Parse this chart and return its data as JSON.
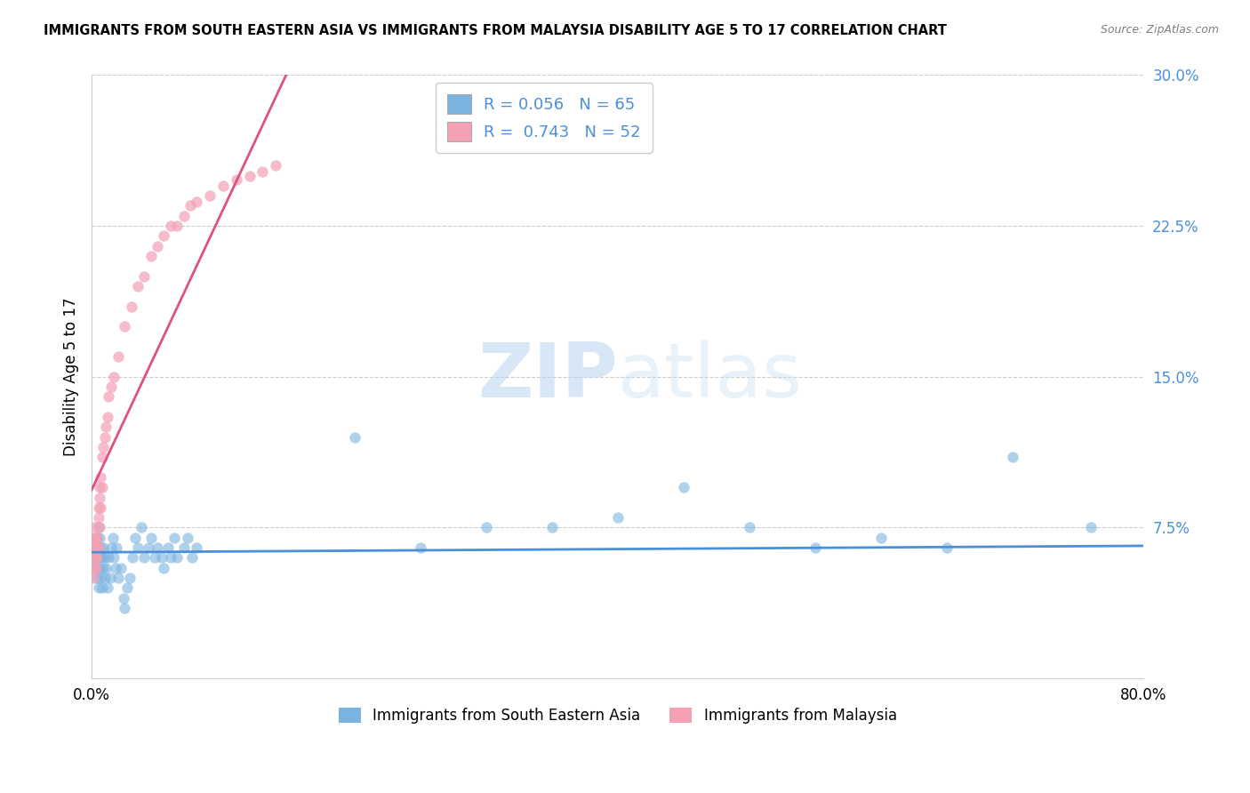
{
  "title": "IMMIGRANTS FROM SOUTH EASTERN ASIA VS IMMIGRANTS FROM MALAYSIA DISABILITY AGE 5 TO 17 CORRELATION CHART",
  "source": "Source: ZipAtlas.com",
  "ylabel": "Disability Age 5 to 17",
  "legend_label1": "Immigrants from South Eastern Asia",
  "legend_label2": "Immigrants from Malaysia",
  "R1": 0.056,
  "N1": 65,
  "R2": 0.743,
  "N2": 52,
  "color1": "#7ab3e0",
  "color2": "#f4a0b5",
  "line_color1": "#4a90d9",
  "line_color2": "#e05080",
  "xlim": [
    0.0,
    0.8
  ],
  "ylim": [
    0.0,
    0.3
  ],
  "yticks": [
    0.0,
    0.075,
    0.15,
    0.225,
    0.3
  ],
  "ytick_labels": [
    "",
    "7.5%",
    "15.0%",
    "22.5%",
    "30.0%"
  ],
  "background_color": "#ffffff",
  "watermark_zip": "ZIP",
  "watermark_atlas": "atlas",
  "blue_scatter_x": [
    0.002,
    0.003,
    0.003,
    0.004,
    0.004,
    0.005,
    0.005,
    0.005,
    0.006,
    0.006,
    0.006,
    0.007,
    0.007,
    0.008,
    0.008,
    0.009,
    0.009,
    0.01,
    0.01,
    0.011,
    0.012,
    0.013,
    0.014,
    0.015,
    0.016,
    0.017,
    0.018,
    0.019,
    0.02,
    0.022,
    0.024,
    0.025,
    0.027,
    0.029,
    0.031,
    0.033,
    0.035,
    0.038,
    0.04,
    0.043,
    0.045,
    0.048,
    0.05,
    0.053,
    0.055,
    0.058,
    0.06,
    0.063,
    0.065,
    0.07,
    0.073,
    0.076,
    0.08,
    0.2,
    0.25,
    0.3,
    0.35,
    0.4,
    0.45,
    0.5,
    0.55,
    0.6,
    0.65,
    0.7,
    0.76
  ],
  "blue_scatter_y": [
    0.06,
    0.055,
    0.065,
    0.05,
    0.07,
    0.045,
    0.06,
    0.075,
    0.055,
    0.06,
    0.07,
    0.05,
    0.065,
    0.045,
    0.06,
    0.055,
    0.065,
    0.05,
    0.06,
    0.055,
    0.045,
    0.06,
    0.05,
    0.065,
    0.07,
    0.06,
    0.055,
    0.065,
    0.05,
    0.055,
    0.04,
    0.035,
    0.045,
    0.05,
    0.06,
    0.07,
    0.065,
    0.075,
    0.06,
    0.065,
    0.07,
    0.06,
    0.065,
    0.06,
    0.055,
    0.065,
    0.06,
    0.07,
    0.06,
    0.065,
    0.07,
    0.06,
    0.065,
    0.12,
    0.065,
    0.075,
    0.075,
    0.08,
    0.095,
    0.075,
    0.065,
    0.07,
    0.065,
    0.11,
    0.075
  ],
  "pink_scatter_x": [
    0.001,
    0.001,
    0.001,
    0.001,
    0.002,
    0.002,
    0.002,
    0.002,
    0.002,
    0.003,
    0.003,
    0.003,
    0.003,
    0.004,
    0.004,
    0.004,
    0.005,
    0.005,
    0.005,
    0.006,
    0.006,
    0.006,
    0.007,
    0.007,
    0.008,
    0.008,
    0.009,
    0.01,
    0.011,
    0.012,
    0.013,
    0.015,
    0.017,
    0.02,
    0.025,
    0.03,
    0.035,
    0.04,
    0.045,
    0.05,
    0.055,
    0.06,
    0.065,
    0.07,
    0.075,
    0.08,
    0.09,
    0.1,
    0.11,
    0.12,
    0.13,
    0.14
  ],
  "pink_scatter_y": [
    0.055,
    0.06,
    0.065,
    0.05,
    0.06,
    0.065,
    0.07,
    0.055,
    0.075,
    0.06,
    0.065,
    0.055,
    0.07,
    0.06,
    0.065,
    0.07,
    0.065,
    0.08,
    0.085,
    0.075,
    0.09,
    0.095,
    0.085,
    0.1,
    0.095,
    0.11,
    0.115,
    0.12,
    0.125,
    0.13,
    0.14,
    0.145,
    0.15,
    0.16,
    0.175,
    0.185,
    0.195,
    0.2,
    0.21,
    0.215,
    0.22,
    0.225,
    0.225,
    0.23,
    0.235,
    0.237,
    0.24,
    0.245,
    0.248,
    0.25,
    0.252,
    0.255
  ]
}
